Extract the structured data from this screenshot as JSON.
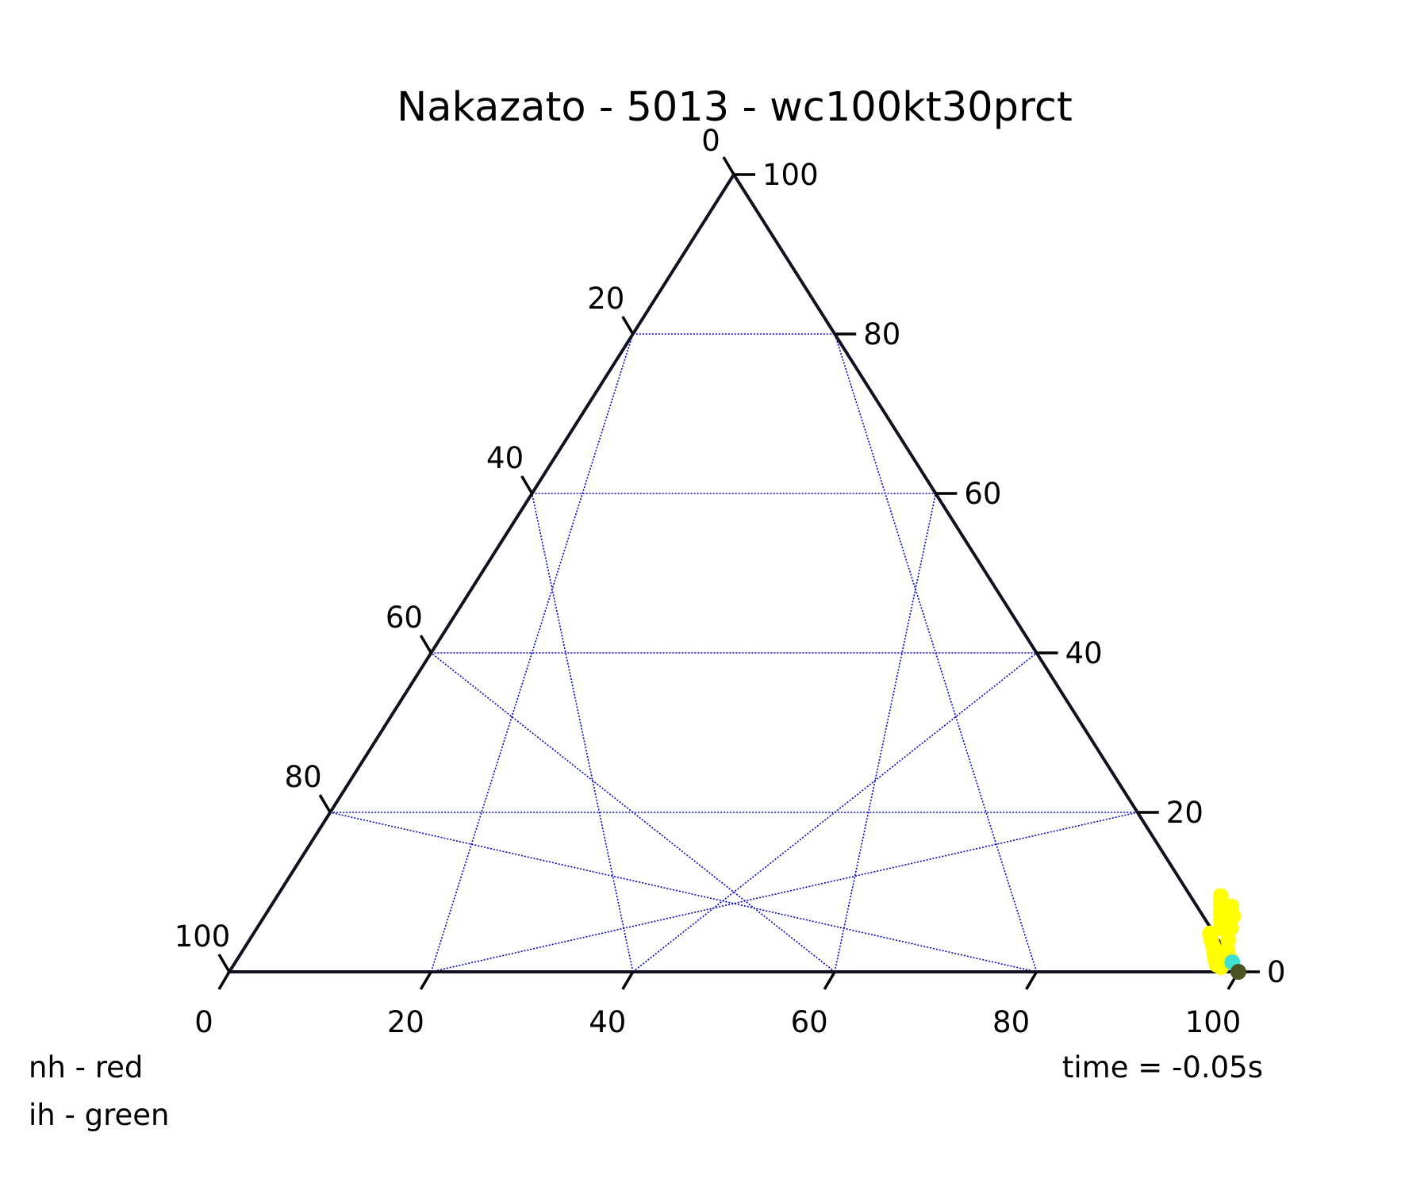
{
  "chart_data": {
    "type": "scatter",
    "subtype": "ternary",
    "title": "Nakazato - 5013 - wc100kt30prct",
    "axes": {
      "bottom": {
        "ticks": [
          0,
          20,
          40,
          60,
          80,
          100
        ],
        "range": [
          0,
          100
        ]
      },
      "left": {
        "ticks": [
          20,
          40,
          60,
          80,
          100
        ],
        "range": [
          0,
          100
        ]
      },
      "right": {
        "ticks": [
          0,
          20,
          40,
          60,
          80,
          100
        ],
        "range": [
          0,
          100
        ]
      },
      "top_label": "0"
    },
    "grid": true,
    "gridlines": [
      20,
      40,
      60,
      80
    ],
    "grid_color": "#0000cc",
    "axis_color": "#111122",
    "series": [
      {
        "color": "#ffff00",
        "points": [
          {
            "b": 93.5,
            "r": 9.5
          },
          {
            "b": 94.0,
            "r": 8.5
          },
          {
            "b": 94.5,
            "r": 7.5
          },
          {
            "b": 95.0,
            "r": 6.5
          },
          {
            "b": 95.5,
            "r": 5.5
          },
          {
            "b": 94.8,
            "r": 4.8
          },
          {
            "b": 95.3,
            "r": 4.0
          },
          {
            "b": 95.9,
            "r": 3.2
          },
          {
            "b": 96.4,
            "r": 2.4
          },
          {
            "b": 96.9,
            "r": 1.6
          },
          {
            "b": 97.4,
            "r": 0.9
          },
          {
            "b": 98.0,
            "r": 0.6
          },
          {
            "b": 96.0,
            "r": 7.0
          },
          {
            "b": 96.5,
            "r": 5.5
          },
          {
            "b": 97.0,
            "r": 4.0
          },
          {
            "b": 97.5,
            "r": 2.8
          },
          {
            "b": 98.2,
            "r": 1.8
          },
          {
            "b": 95.2,
            "r": 8.2
          }
        ]
      },
      {
        "color": "#40e0d0",
        "points": [
          {
            "b": 98.8,
            "r": 1.2
          }
        ]
      },
      {
        "color": "#4b5320",
        "points": [
          {
            "b": 100,
            "r": 0
          }
        ]
      }
    ],
    "annotations": {
      "legend_lines": [
        "nh - red",
        "ih - green"
      ],
      "time_label": "time = -0.05s"
    }
  }
}
